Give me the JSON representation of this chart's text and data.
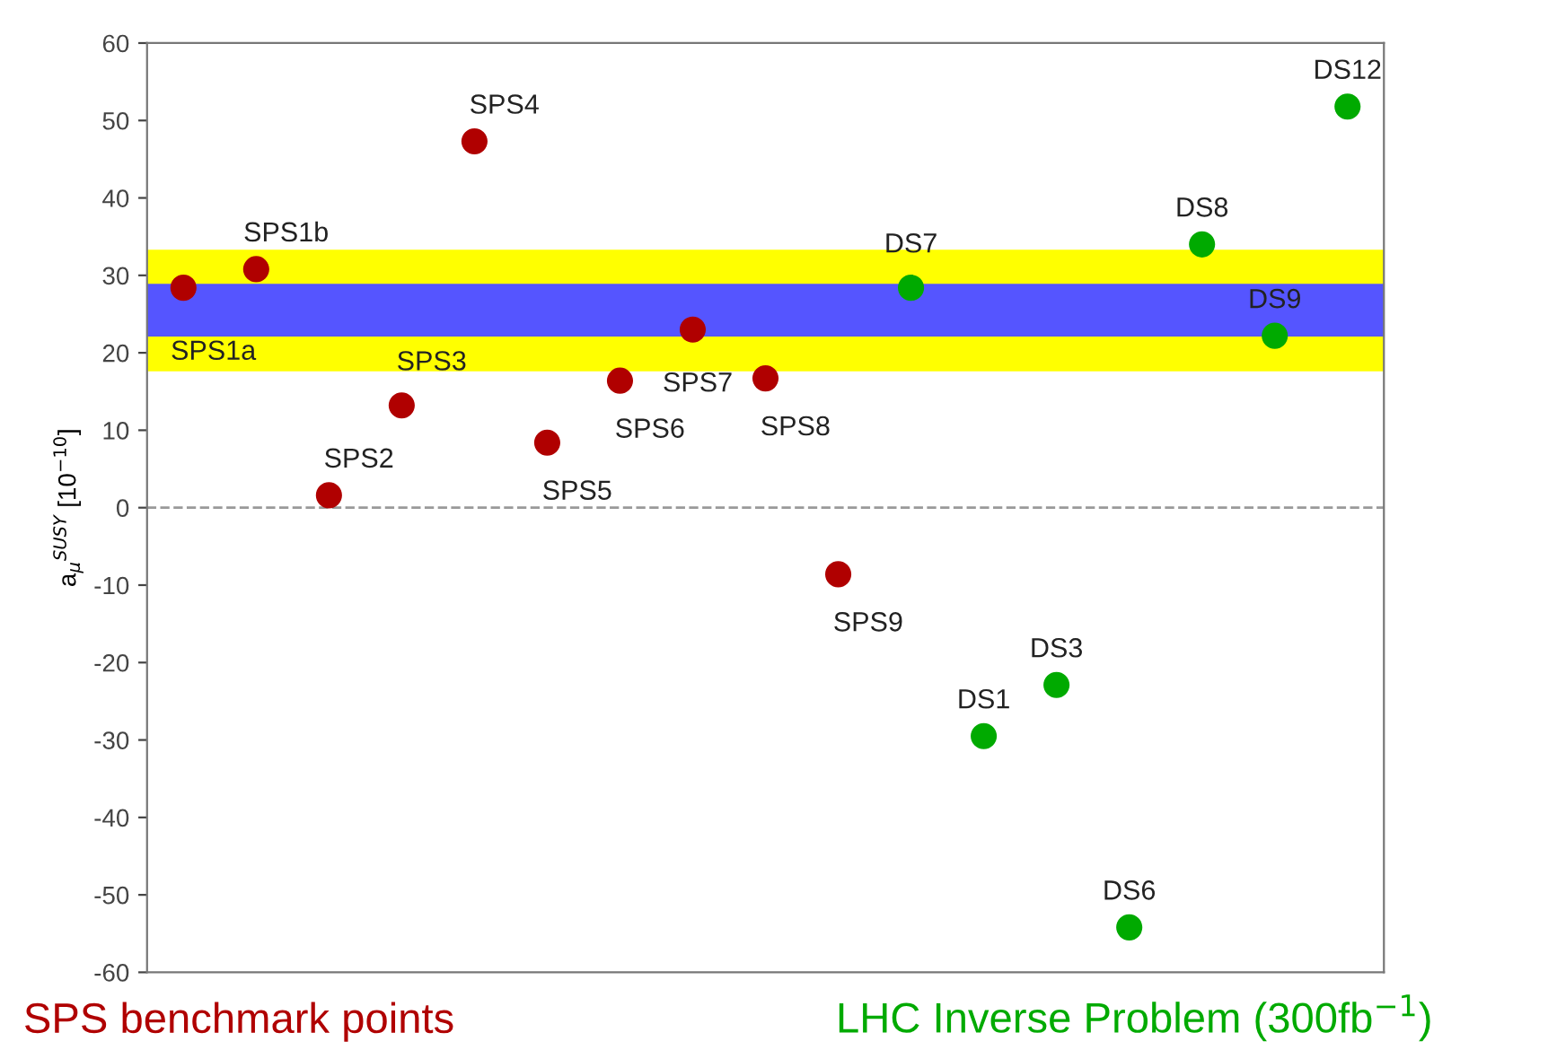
{
  "chart_data": {
    "type": "scatter",
    "ylabel": "a$_{μ}$$^{SUSY}$ [10$^{−10}$]",
    "categories": [
      null,
      null,
      null,
      null,
      null,
      null,
      null,
      null,
      null,
      null,
      null,
      null,
      null,
      null,
      null,
      null,
      null
    ],
    "ylim": [
      -60,
      60
    ],
    "yticks": [
      -60,
      -50,
      -40,
      -30,
      -20,
      -10,
      0,
      10,
      20,
      30,
      40,
      50,
      60
    ],
    "tick_labels": "y",
    "marker": "circle",
    "legend": "bottom",
    "series": [
      {
        "name": "SPS benchmark points",
        "color": "#b00000",
        "values": [
          28.4,
          30.8,
          1.6,
          13.2,
          47.3,
          8.4,
          16.4,
          23.0,
          16.7,
          -8.6,
          null,
          null,
          null,
          null,
          null,
          null,
          null
        ]
      },
      {
        "name": "LHC Inverse Problem (300fb$^{−1}$)",
        "color": "#00aa00",
        "values": [
          null,
          null,
          null,
          null,
          null,
          null,
          null,
          null,
          null,
          null,
          28.4,
          -29.5,
          -22.9,
          -54.2,
          34.0,
          22.2,
          51.8
        ]
      }
    ],
    "bands": [
      {
        "axis": "y",
        "from": 17.6,
        "to": 33.3,
        "color": "#ffff00"
      },
      {
        "axis": "y",
        "from": 22.1,
        "to": 28.9,
        "color": "#5555ff"
      }
    ],
    "ref_lines": [
      {
        "axis": "y",
        "value": 0,
        "color": "#999999",
        "line_style": "dashed"
      }
    ],
    "annotations": [
      "SPS1a",
      "SPS1b",
      "SPS2",
      "SPS3",
      "SPS4",
      "SPS5",
      "SPS6",
      "SPS7",
      "SPS8",
      "SPS9",
      "DS7",
      "DS1",
      "DS3",
      "DS6",
      "DS8",
      "DS9",
      "DS12"
    ]
  }
}
